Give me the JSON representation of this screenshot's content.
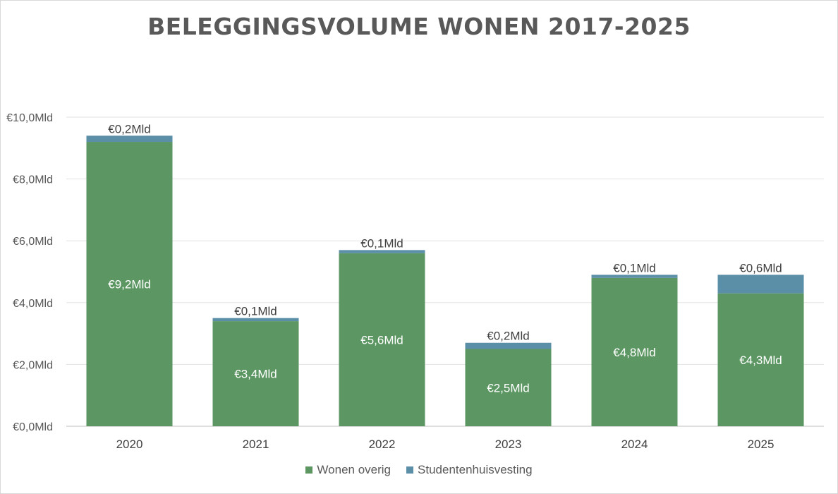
{
  "chart_data": {
    "type": "bar",
    "stacked": true,
    "title": "BELEGGINGSVOLUME WONEN 2017-2025",
    "categories": [
      "2020",
      "2021",
      "2022",
      "2023",
      "2024",
      "2025"
    ],
    "series": [
      {
        "name": "Wonen overig",
        "color": "#5c9763",
        "values": [
          9.2,
          3.4,
          5.6,
          2.5,
          4.8,
          4.3
        ],
        "labels": [
          "€9,2Mld",
          "€3,4Mld",
          "€5,6Mld",
          "€2,5Mld",
          "€4,8Mld",
          "€4,3Mld"
        ]
      },
      {
        "name": "Studentenhuisvesting",
        "color": "#5b8fa8",
        "values": [
          0.2,
          0.1,
          0.1,
          0.2,
          0.1,
          0.6
        ],
        "labels": [
          "€0,2Mld",
          "€0,1Mld",
          "€0,1Mld",
          "€0,2Mld",
          "€0,1Mld",
          "€0,6Mld"
        ]
      }
    ],
    "ylim": [
      0,
      10
    ],
    "yticks": [
      0,
      2,
      4,
      6,
      8,
      10
    ],
    "ytick_labels": [
      "€0,0Mld",
      "€2,0Mld",
      "€4,0Mld",
      "€6,0Mld",
      "€8,0Mld",
      "€10,0Mld"
    ],
    "grid": true,
    "legend": "bottom"
  }
}
